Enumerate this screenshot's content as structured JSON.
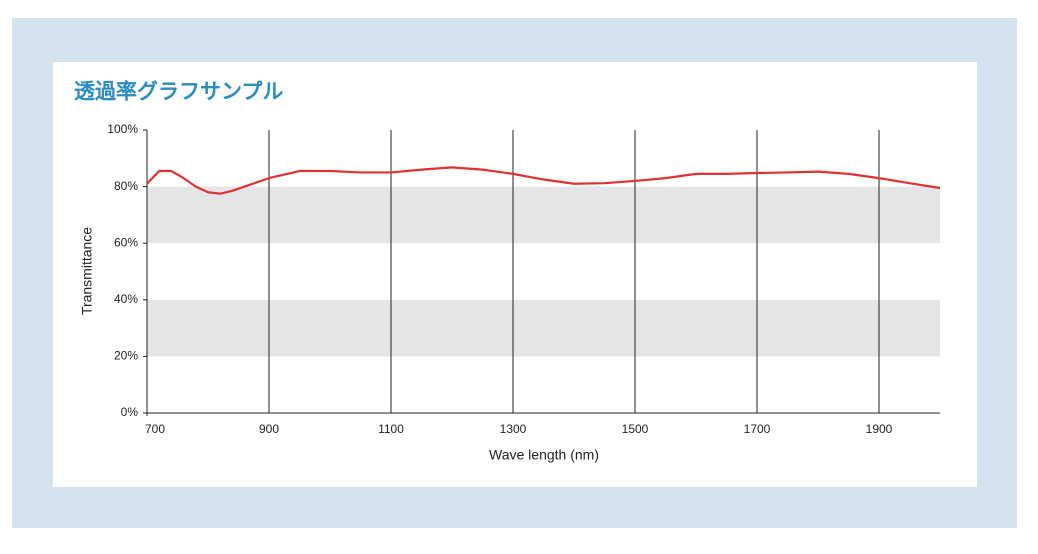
{
  "chart_data": {
    "type": "line",
    "title": "透過率グラフサンプル",
    "x_label": "Wave length (nm)",
    "y_label": "Transmittance",
    "xlim": [
      700,
      2000
    ],
    "ylim": [
      0,
      100
    ],
    "xticks": [
      700,
      900,
      1100,
      1300,
      1500,
      1700,
      1900
    ],
    "yticks": [
      {
        "value": 0,
        "label": "0%"
      },
      {
        "value": 20,
        "label": "20%"
      },
      {
        "value": 40,
        "label": "40%"
      },
      {
        "value": 60,
        "label": "60%"
      },
      {
        "value": 80,
        "label": "80%"
      },
      {
        "value": 100,
        "label": "100%"
      }
    ],
    "shaded_bands": [
      [
        20,
        40
      ],
      [
        60,
        80
      ]
    ],
    "band_color": "#e4e5e7",
    "grid": true,
    "x": [
      700,
      720,
      740,
      760,
      780,
      800,
      820,
      840,
      860,
      900,
      950,
      1000,
      1050,
      1100,
      1150,
      1200,
      1250,
      1300,
      1350,
      1400,
      1450,
      1500,
      1550,
      1600,
      1650,
      1700,
      1750,
      1800,
      1850,
      1900,
      1950,
      2000
    ],
    "series": [
      {
        "color": "#e03131",
        "values": [
          81,
          85.5,
          85.5,
          83,
          80,
          78,
          77.5,
          78.5,
          80,
          83,
          85.5,
          85.5,
          85,
          85,
          86,
          86.8,
          86,
          84.5,
          82.5,
          81,
          81.2,
          82,
          83,
          84.5,
          84.5,
          84.8,
          85,
          85.3,
          84.5,
          83,
          81.2,
          79.5
        ]
      }
    ]
  }
}
